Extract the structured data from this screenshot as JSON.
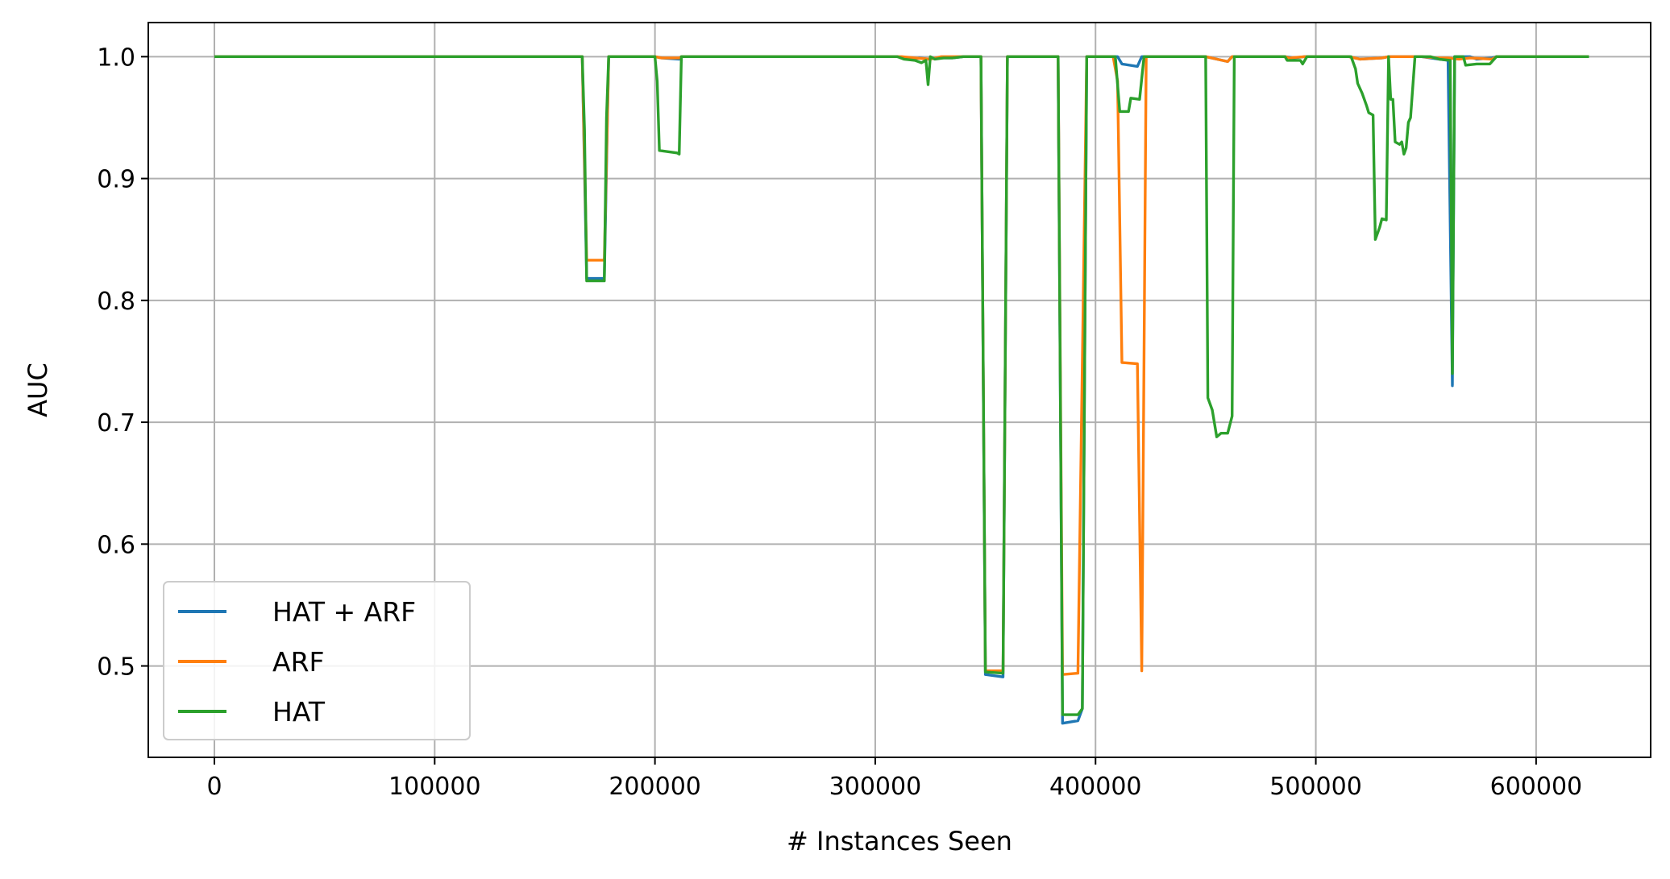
{
  "chart_data": {
    "type": "line",
    "title": "",
    "xlabel": "# Instances Seen",
    "ylabel": "AUC",
    "xlim": [
      -30000,
      652000
    ],
    "ylim": [
      0.425,
      1.028
    ],
    "xticks": [
      0,
      100000,
      200000,
      300000,
      400000,
      500000,
      600000
    ],
    "xtick_labels": [
      "0",
      "100000",
      "200000",
      "300000",
      "400000",
      "500000",
      "600000"
    ],
    "yticks": [
      0.5,
      0.6,
      0.7,
      0.8,
      0.9,
      1.0
    ],
    "ytick_labels": [
      "0.5",
      "0.6",
      "0.7",
      "0.8",
      "0.9",
      "1.0"
    ],
    "grid": true,
    "legend_position": "lower-left",
    "series": [
      {
        "name": "HAT + ARF",
        "color": "#1f77b4",
        "points": [
          [
            0,
            1.0
          ],
          [
            167000,
            1.0
          ],
          [
            169000,
            0.818
          ],
          [
            177000,
            0.818
          ],
          [
            179000,
            1.0
          ],
          [
            200000,
            1.0
          ],
          [
            203000,
            0.999
          ],
          [
            211000,
            0.998
          ],
          [
            212000,
            1.0
          ],
          [
            310000,
            1.0
          ],
          [
            315000,
            0.998
          ],
          [
            320000,
            0.999
          ],
          [
            324000,
            0.998
          ],
          [
            328000,
            0.999
          ],
          [
            335000,
            0.999
          ],
          [
            340000,
            1.0
          ],
          [
            348000,
            1.0
          ],
          [
            350000,
            0.493
          ],
          [
            358000,
            0.491
          ],
          [
            360000,
            1.0
          ],
          [
            383000,
            1.0
          ],
          [
            385000,
            0.453
          ],
          [
            392000,
            0.455
          ],
          [
            394000,
            0.465
          ],
          [
            396000,
            1.0
          ],
          [
            410000,
            1.0
          ],
          [
            412000,
            0.994
          ],
          [
            419000,
            0.992
          ],
          [
            421000,
            1.0
          ],
          [
            450000,
            1.0
          ],
          [
            455000,
            0.998
          ],
          [
            460000,
            0.996
          ],
          [
            462000,
            1.0
          ],
          [
            486000,
            1.0
          ],
          [
            490000,
            0.999
          ],
          [
            495000,
            1.0
          ],
          [
            515000,
            1.0
          ],
          [
            520000,
            0.998
          ],
          [
            530000,
            0.999
          ],
          [
            533000,
            1.0
          ],
          [
            548000,
            1.0
          ],
          [
            552000,
            0.999
          ],
          [
            560000,
            0.997
          ],
          [
            562000,
            0.73
          ],
          [
            563000,
            1.0
          ],
          [
            570000,
            1.0
          ],
          [
            573000,
            0.998
          ],
          [
            580000,
            0.999
          ],
          [
            582000,
            1.0
          ],
          [
            624000,
            1.0
          ]
        ]
      },
      {
        "name": "ARF",
        "color": "#ff7f0e",
        "points": [
          [
            0,
            1.0
          ],
          [
            167000,
            1.0
          ],
          [
            169000,
            0.833
          ],
          [
            177000,
            0.833
          ],
          [
            179000,
            1.0
          ],
          [
            200000,
            1.0
          ],
          [
            203000,
            0.999
          ],
          [
            211000,
            0.999
          ],
          [
            212000,
            1.0
          ],
          [
            310000,
            1.0
          ],
          [
            312000,
            1.0
          ],
          [
            318000,
            0.999
          ],
          [
            325000,
            0.998
          ],
          [
            330000,
            1.0
          ],
          [
            348000,
            1.0
          ],
          [
            350000,
            0.496
          ],
          [
            358000,
            0.496
          ],
          [
            360000,
            1.0
          ],
          [
            383000,
            1.0
          ],
          [
            385000,
            0.493
          ],
          [
            392000,
            0.494
          ],
          [
            396000,
            1.0
          ],
          [
            408000,
            1.0
          ],
          [
            410000,
            0.98
          ],
          [
            412000,
            0.749
          ],
          [
            419000,
            0.748
          ],
          [
            421000,
            0.496
          ],
          [
            423000,
            1.0
          ],
          [
            450000,
            1.0
          ],
          [
            455000,
            0.998
          ],
          [
            460000,
            0.996
          ],
          [
            462000,
            1.0
          ],
          [
            486000,
            1.0
          ],
          [
            488000,
            0.999
          ],
          [
            495000,
            1.0
          ],
          [
            515000,
            1.0
          ],
          [
            520000,
            0.998
          ],
          [
            530000,
            0.999
          ],
          [
            533000,
            1.0
          ],
          [
            548000,
            1.0
          ],
          [
            555000,
            0.999
          ],
          [
            560000,
            0.999
          ],
          [
            565000,
            0.998
          ],
          [
            570000,
            0.999
          ],
          [
            580000,
            0.998
          ],
          [
            582000,
            1.0
          ],
          [
            624000,
            1.0
          ]
        ]
      },
      {
        "name": "HAT",
        "color": "#2ca02c",
        "points": [
          [
            0,
            1.0
          ],
          [
            167000,
            1.0
          ],
          [
            168000,
            0.94
          ],
          [
            169000,
            0.816
          ],
          [
            177000,
            0.816
          ],
          [
            178000,
            0.95
          ],
          [
            179000,
            1.0
          ],
          [
            200000,
            1.0
          ],
          [
            201000,
            0.98
          ],
          [
            202000,
            0.923
          ],
          [
            210000,
            0.921
          ],
          [
            211000,
            0.92
          ],
          [
            212000,
            1.0
          ],
          [
            310000,
            1.0
          ],
          [
            313000,
            0.998
          ],
          [
            318000,
            0.997
          ],
          [
            321000,
            0.995
          ],
          [
            323000,
            0.997
          ],
          [
            324000,
            0.977
          ],
          [
            325000,
            1.0
          ],
          [
            327000,
            0.998
          ],
          [
            331000,
            0.999
          ],
          [
            335000,
            0.999
          ],
          [
            340000,
            1.0
          ],
          [
            348000,
            1.0
          ],
          [
            350000,
            0.495
          ],
          [
            358000,
            0.494
          ],
          [
            360000,
            1.0
          ],
          [
            383000,
            1.0
          ],
          [
            385000,
            0.46
          ],
          [
            392000,
            0.46
          ],
          [
            394000,
            0.465
          ],
          [
            396000,
            1.0
          ],
          [
            409000,
            1.0
          ],
          [
            411000,
            0.955
          ],
          [
            415000,
            0.955
          ],
          [
            416000,
            0.966
          ],
          [
            420000,
            0.965
          ],
          [
            422000,
            1.0
          ],
          [
            450000,
            1.0
          ],
          [
            451000,
            0.72
          ],
          [
            453000,
            0.71
          ],
          [
            455000,
            0.688
          ],
          [
            457000,
            0.691
          ],
          [
            460000,
            0.691
          ],
          [
            462000,
            0.705
          ],
          [
            463000,
            1.0
          ],
          [
            486000,
            1.0
          ],
          [
            487000,
            0.997
          ],
          [
            493000,
            0.997
          ],
          [
            494000,
            0.994
          ],
          [
            496000,
            1.0
          ],
          [
            512000,
            1.0
          ],
          [
            516000,
            1.0
          ],
          [
            518000,
            0.99
          ],
          [
            519000,
            0.978
          ],
          [
            521000,
            0.97
          ],
          [
            523000,
            0.96
          ],
          [
            524000,
            0.954
          ],
          [
            526000,
            0.952
          ],
          [
            527000,
            0.85
          ],
          [
            529000,
            0.86
          ],
          [
            530000,
            0.867
          ],
          [
            532000,
            0.866
          ],
          [
            533000,
            1.0
          ],
          [
            534000,
            0.965
          ],
          [
            535000,
            0.965
          ],
          [
            536000,
            0.93
          ],
          [
            538000,
            0.928
          ],
          [
            539000,
            0.93
          ],
          [
            540000,
            0.92
          ],
          [
            541000,
            0.925
          ],
          [
            542000,
            0.946
          ],
          [
            543000,
            0.95
          ],
          [
            545000,
            1.0
          ],
          [
            552000,
            1.0
          ],
          [
            556000,
            0.998
          ],
          [
            561000,
            0.997
          ],
          [
            562000,
            0.74
          ],
          [
            563000,
            1.0
          ],
          [
            567000,
            1.0
          ],
          [
            568000,
            0.993
          ],
          [
            573000,
            0.994
          ],
          [
            579000,
            0.994
          ],
          [
            582000,
            1.0
          ],
          [
            624000,
            1.0
          ]
        ]
      }
    ]
  }
}
